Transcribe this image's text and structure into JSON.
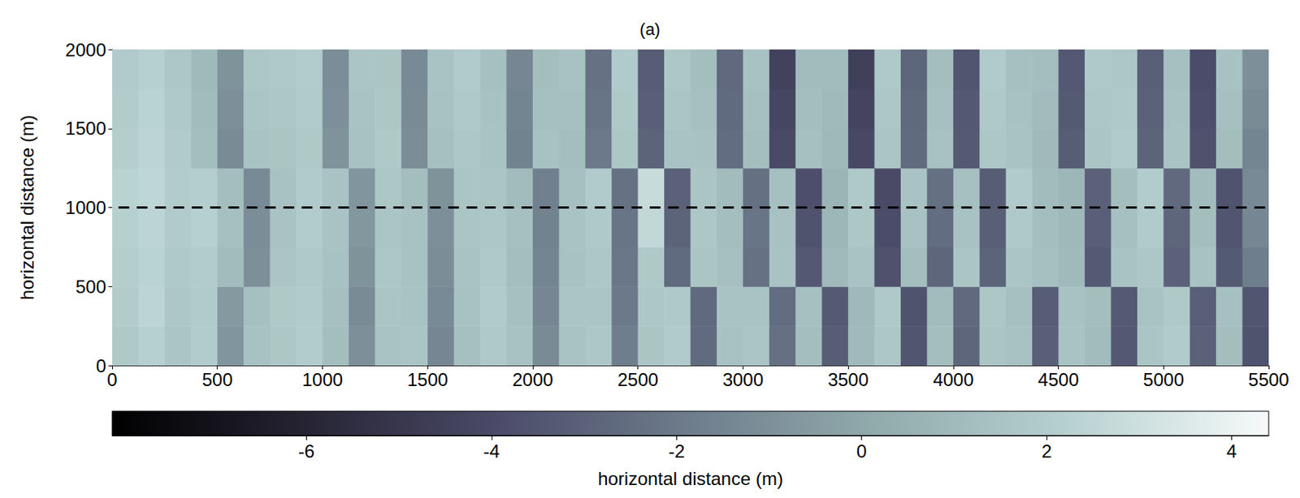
{
  "chart_data": {
    "type": "heatmap",
    "title": "(a)",
    "ylabel": "horizontal distance (m)",
    "x": [
      62.5,
      187.5,
      312.5,
      437.5,
      562.5,
      687.5,
      812.5,
      937.5,
      1062.5,
      1187.5,
      1312.5,
      1437.5,
      1562.5,
      1687.5,
      1812.5,
      1937.5,
      2062.5,
      2187.5,
      2312.5,
      2437.5,
      2562.5,
      2687.5,
      2812.5,
      2937.5,
      3062.5,
      3187.5,
      3312.5,
      3437.5,
      3562.5,
      3687.5,
      3812.5,
      3937.5,
      4062.5,
      4187.5,
      4312.5,
      4437.5,
      4562.5,
      4687.5,
      4812.5,
      4937.5,
      5062.5,
      5187.5,
      5312.5,
      5437.5
    ],
    "y": [
      125,
      375,
      625,
      875,
      1125,
      1375,
      1625,
      1875
    ],
    "cells": [
      [
        1.8,
        2.2,
        1.6,
        2.0,
        -0.8,
        1.4,
        1.7,
        2.0,
        1.2,
        -1.0,
        1.5,
        1.6,
        -1.4,
        1.3,
        1.8,
        1.4,
        -1.2,
        1.5,
        1.7,
        -1.8,
        1.6,
        1.9,
        -2.6,
        1.4,
        1.6,
        -2.4,
        1.2,
        -3.2,
        1.0,
        1.7,
        -3.5,
        1.2,
        -2.8,
        1.6,
        1.4,
        -3.1,
        1.5,
        1.1,
        -3.4,
        1.6,
        1.9,
        -3.0,
        1.2,
        -3.6
      ],
      [
        2.0,
        2.4,
        1.7,
        1.9,
        -0.6,
        1.3,
        1.8,
        1.9,
        1.3,
        -1.2,
        1.6,
        1.5,
        -1.3,
        1.4,
        1.9,
        1.3,
        -1.4,
        1.6,
        1.6,
        -2.0,
        1.7,
        1.8,
        -2.7,
        1.5,
        1.5,
        -2.5,
        1.3,
        -3.3,
        0.9,
        1.8,
        -3.6,
        1.1,
        -2.7,
        1.7,
        1.3,
        -3.2,
        1.4,
        1.2,
        -3.3,
        1.5,
        1.8,
        -3.1,
        1.3,
        -3.5
      ],
      [
        2.1,
        2.3,
        1.8,
        2.0,
        1.1,
        -1.0,
        1.6,
        1.8,
        1.4,
        -0.9,
        1.7,
        1.4,
        -1.1,
        1.5,
        1.8,
        1.2,
        -1.5,
        1.4,
        1.7,
        -2.1,
        1.8,
        -2.6,
        1.6,
        1.3,
        -2.3,
        1.5,
        -3.4,
        1.0,
        1.5,
        -3.7,
        1.2,
        -2.8,
        1.6,
        -2.9,
        1.6,
        1.3,
        1.0,
        -3.3,
        1.5,
        1.7,
        -3.0,
        1.4,
        -3.3,
        -1.8
      ],
      [
        2.2,
        2.4,
        1.9,
        2.2,
        1.3,
        -1.1,
        1.5,
        2.0,
        1.5,
        -0.7,
        1.6,
        1.4,
        -1.0,
        1.6,
        1.7,
        1.3,
        -1.6,
        1.5,
        1.8,
        -2.2,
        2.6,
        -2.9,
        1.7,
        1.2,
        -2.2,
        1.4,
        -3.6,
        0.8,
        1.7,
        -3.9,
        1.4,
        -2.5,
        1.4,
        -3.1,
        1.8,
        1.2,
        0.9,
        -3.1,
        1.3,
        1.9,
        -2.8,
        1.2,
        -3.5,
        -1.4
      ],
      [
        2.3,
        2.5,
        2.0,
        2.1,
        1.2,
        -1.3,
        1.4,
        1.9,
        1.5,
        -0.8,
        1.7,
        1.2,
        -0.9,
        1.6,
        1.6,
        1.1,
        -1.7,
        1.3,
        1.9,
        -2.3,
        2.8,
        -3.0,
        1.6,
        1.1,
        -2.4,
        1.3,
        -3.8,
        0.7,
        1.8,
        -4.0,
        1.5,
        -2.4,
        1.3,
        -3.2,
        1.9,
        1.1,
        0.8,
        -3.0,
        1.2,
        2.0,
        -2.7,
        1.1,
        -3.6,
        -1.3
      ],
      [
        2.1,
        2.4,
        1.9,
        1.2,
        -1.2,
        1.5,
        1.6,
        1.8,
        -0.9,
        1.4,
        1.8,
        -1.1,
        1.3,
        1.7,
        1.5,
        -1.6,
        1.4,
        1.2,
        -2.0,
        1.7,
        -2.9,
        1.5,
        1.4,
        -2.5,
        1.2,
        -4.0,
        1.3,
        0.9,
        -4.1,
        1.6,
        -2.6,
        1.4,
        -3.3,
        1.7,
        1.5,
        1.0,
        -3.2,
        1.6,
        1.9,
        -2.9,
        1.5,
        -3.7,
        1.2,
        -1.5
      ],
      [
        2.0,
        2.3,
        1.8,
        1.1,
        -1.0,
        1.6,
        1.7,
        1.9,
        -1.0,
        1.5,
        1.7,
        -1.2,
        1.4,
        1.8,
        1.4,
        -1.5,
        1.3,
        1.3,
        -2.2,
        1.8,
        -3.1,
        1.6,
        1.3,
        -2.6,
        1.3,
        -4.2,
        1.2,
        1.0,
        -4.3,
        1.7,
        -2.7,
        1.3,
        -3.4,
        1.8,
        1.4,
        1.1,
        -3.3,
        1.7,
        1.8,
        -3.0,
        1.4,
        -3.8,
        1.3,
        -1.2
      ],
      [
        1.9,
        2.2,
        1.7,
        1.0,
        -0.9,
        1.7,
        1.8,
        2.0,
        -1.1,
        1.6,
        1.6,
        -1.3,
        1.5,
        1.9,
        1.3,
        -1.4,
        1.2,
        1.4,
        -2.3,
        1.9,
        -3.2,
        1.7,
        1.2,
        -2.7,
        1.4,
        -4.4,
        1.1,
        1.1,
        -4.5,
        1.8,
        -2.8,
        1.2,
        -3.5,
        1.9,
        1.3,
        1.2,
        -3.4,
        1.8,
        1.7,
        -3.1,
        1.3,
        -3.9,
        1.4,
        -1.0
      ]
    ],
    "xlim": [
      0,
      5500
    ],
    "xticks": [
      0,
      500,
      1000,
      1500,
      2000,
      2500,
      3000,
      3500,
      4000,
      4500,
      5000,
      5500
    ],
    "ylim": [
      0,
      2000
    ],
    "yticks": [
      0,
      500,
      1000,
      1500,
      2000
    ],
    "colorbar": {
      "label": "horizontal distance (m)",
      "range": [
        -8.1,
        4.4
      ],
      "ticks": [
        -6,
        -4,
        -2,
        0,
        2,
        4
      ]
    },
    "reference_line": {
      "y": 1000,
      "x_start": 30,
      "x_end": 5500,
      "line_style": "dashed",
      "color": "#000000"
    },
    "grid": false
  }
}
